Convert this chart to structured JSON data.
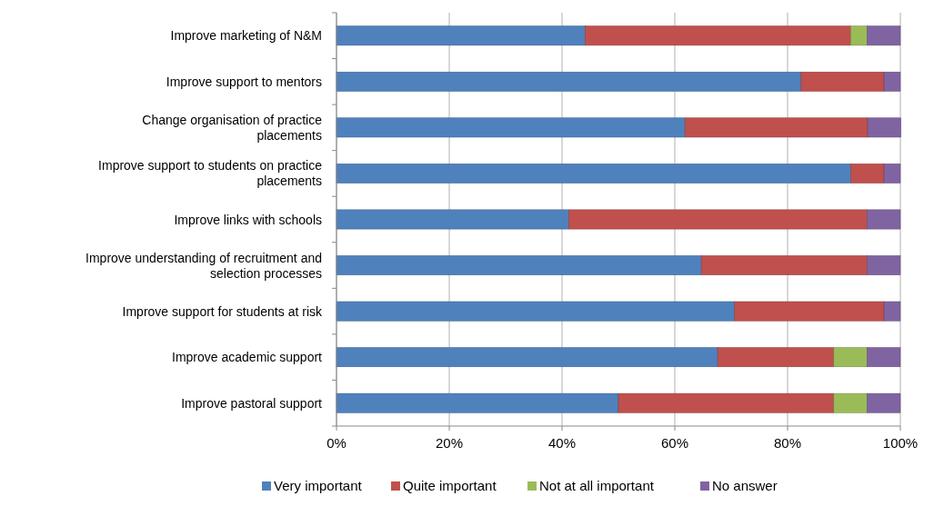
{
  "chart_data": {
    "type": "bar",
    "orientation": "horizontal",
    "stacked": true,
    "categories": [
      "Improve marketing of N&M",
      "Improve support to mentors",
      "Change organisation of practice placements",
      "Improve support to students on practice placements",
      "Improve links with schools",
      "Improve understanding of recruitment and selection processes",
      "Improve support for students at risk",
      "Improve academic support",
      "Improve pastoral support"
    ],
    "series": [
      {
        "name": "Very important",
        "color": "#4f81bd",
        "values": [
          44.1,
          82.4,
          61.8,
          91.2,
          41.2,
          64.7,
          70.6,
          67.6,
          50
        ]
      },
      {
        "name": "Quite important",
        "color": "#c0504d",
        "values": [
          47.1,
          14.7,
          32.4,
          5.9,
          52.9,
          29.4,
          26.5,
          20.6,
          38.2
        ]
      },
      {
        "name": "Not at all important",
        "color": "#9bbb59",
        "values": [
          2.9,
          0,
          0,
          0,
          0,
          0,
          0,
          5.9,
          5.9
        ]
      },
      {
        "name": "No answer",
        "color": "#8064a2",
        "values": [
          5.9,
          2.9,
          5.9,
          2.9,
          5.9,
          5.9,
          2.9,
          5.9,
          5.9
        ]
      }
    ],
    "xlim": [
      0,
      100
    ],
    "xticks": [
      {
        "value": 0,
        "label": "0%"
      },
      {
        "value": 20,
        "label": "20%"
      },
      {
        "value": 40,
        "label": "40%"
      },
      {
        "value": 60,
        "label": "60%"
      },
      {
        "value": 80,
        "label": "80%"
      },
      {
        "value": 100,
        "label": "100%"
      }
    ],
    "grid": "x",
    "legend": "bottom"
  }
}
